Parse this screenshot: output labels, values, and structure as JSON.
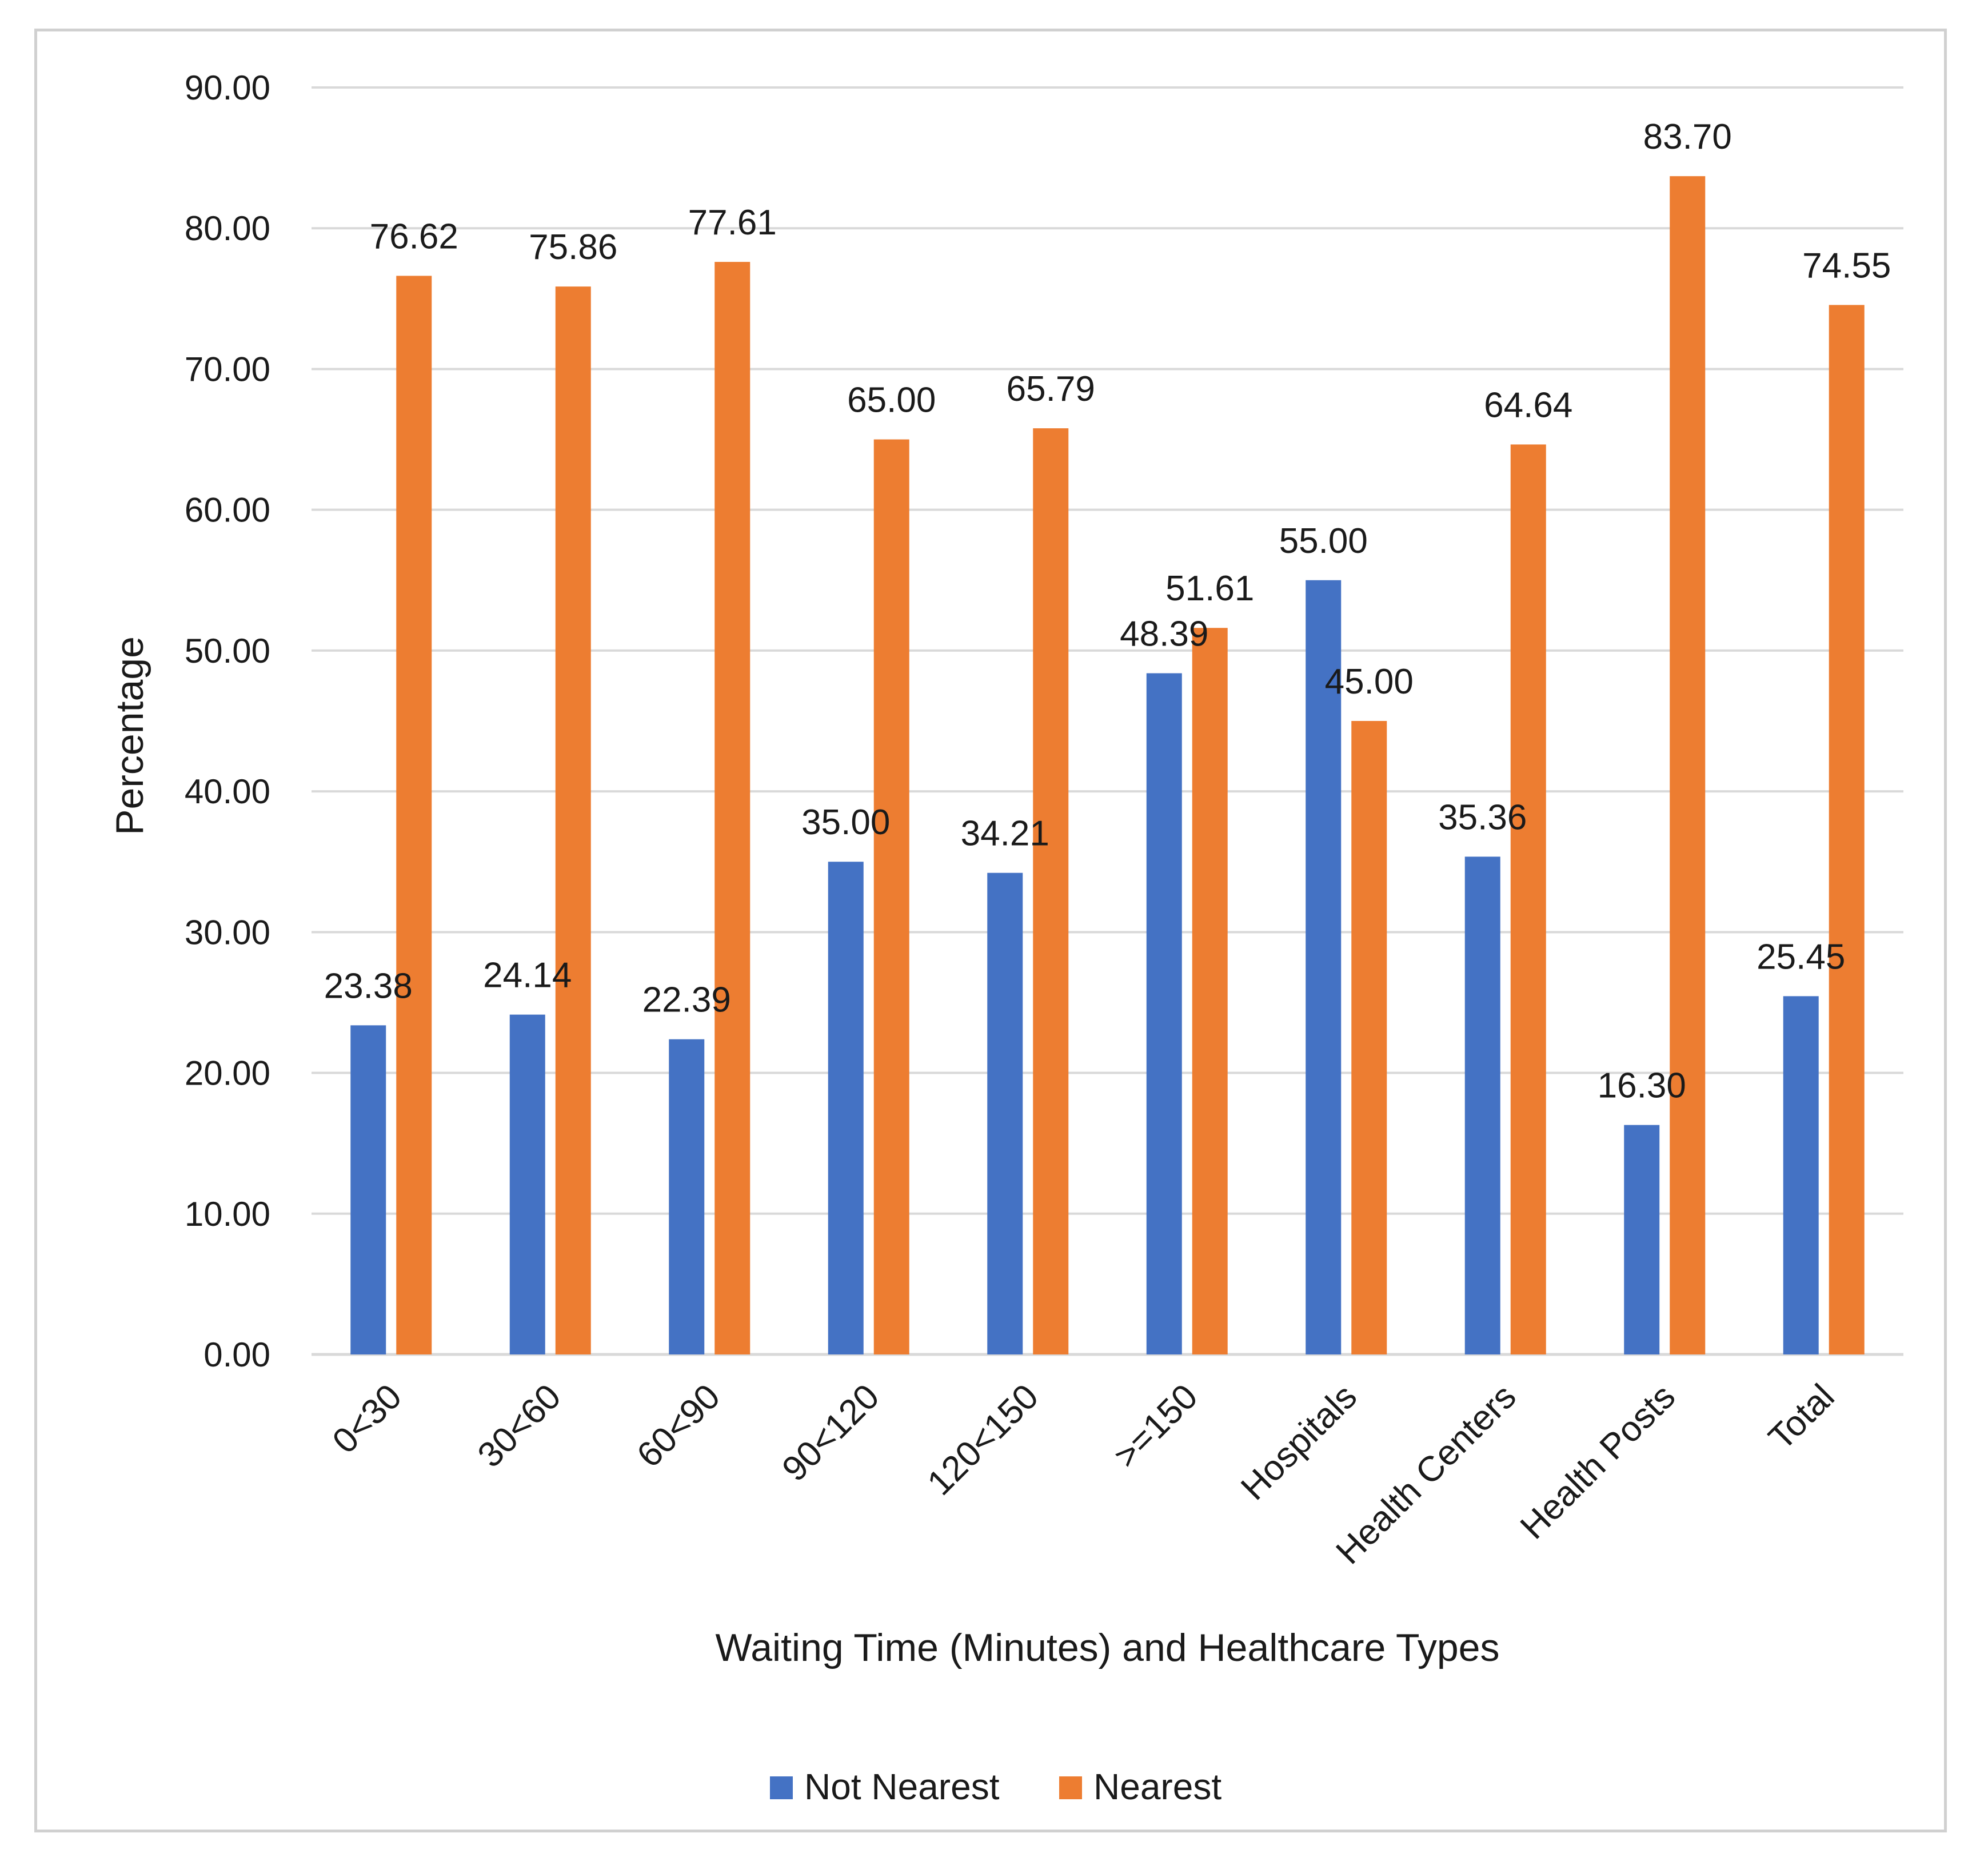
{
  "chart_data": {
    "type": "bar",
    "title": "",
    "xlabel": "Waiting Time (Minutes) and Healthcare Types",
    "ylabel": "Percentage",
    "ylim": [
      0,
      90
    ],
    "yticks": [
      "0.00",
      "10.00",
      "20.00",
      "30.00",
      "40.00",
      "50.00",
      "60.00",
      "70.00",
      "80.00",
      "90.00"
    ],
    "grid": true,
    "legend_position": "bottom",
    "categories": [
      "0<30",
      "30<60",
      "60<90",
      "90<120",
      "120<150",
      ">=150",
      "Hospitals",
      "Health Centers",
      "Health Posts",
      "Total"
    ],
    "series": [
      {
        "name": "Not Nearest",
        "color": "#4472C4",
        "values": [
          23.38,
          24.14,
          22.39,
          35.0,
          34.21,
          48.39,
          55.0,
          35.36,
          16.3,
          25.45
        ],
        "labels": [
          "23.38",
          "24.14",
          "22.39",
          "35.00",
          "34.21",
          "48.39",
          "55.00",
          "35.36",
          "16.30",
          "25.45"
        ]
      },
      {
        "name": "Nearest",
        "color": "#ED7D31",
        "values": [
          76.62,
          75.86,
          77.61,
          65.0,
          65.79,
          51.61,
          45.0,
          64.64,
          83.7,
          74.55
        ],
        "labels": [
          "76.62",
          "75.86",
          "77.61",
          "65.00",
          "65.79",
          "51.61",
          "45.00",
          "64.64",
          "83.70",
          "74.55"
        ]
      }
    ]
  }
}
